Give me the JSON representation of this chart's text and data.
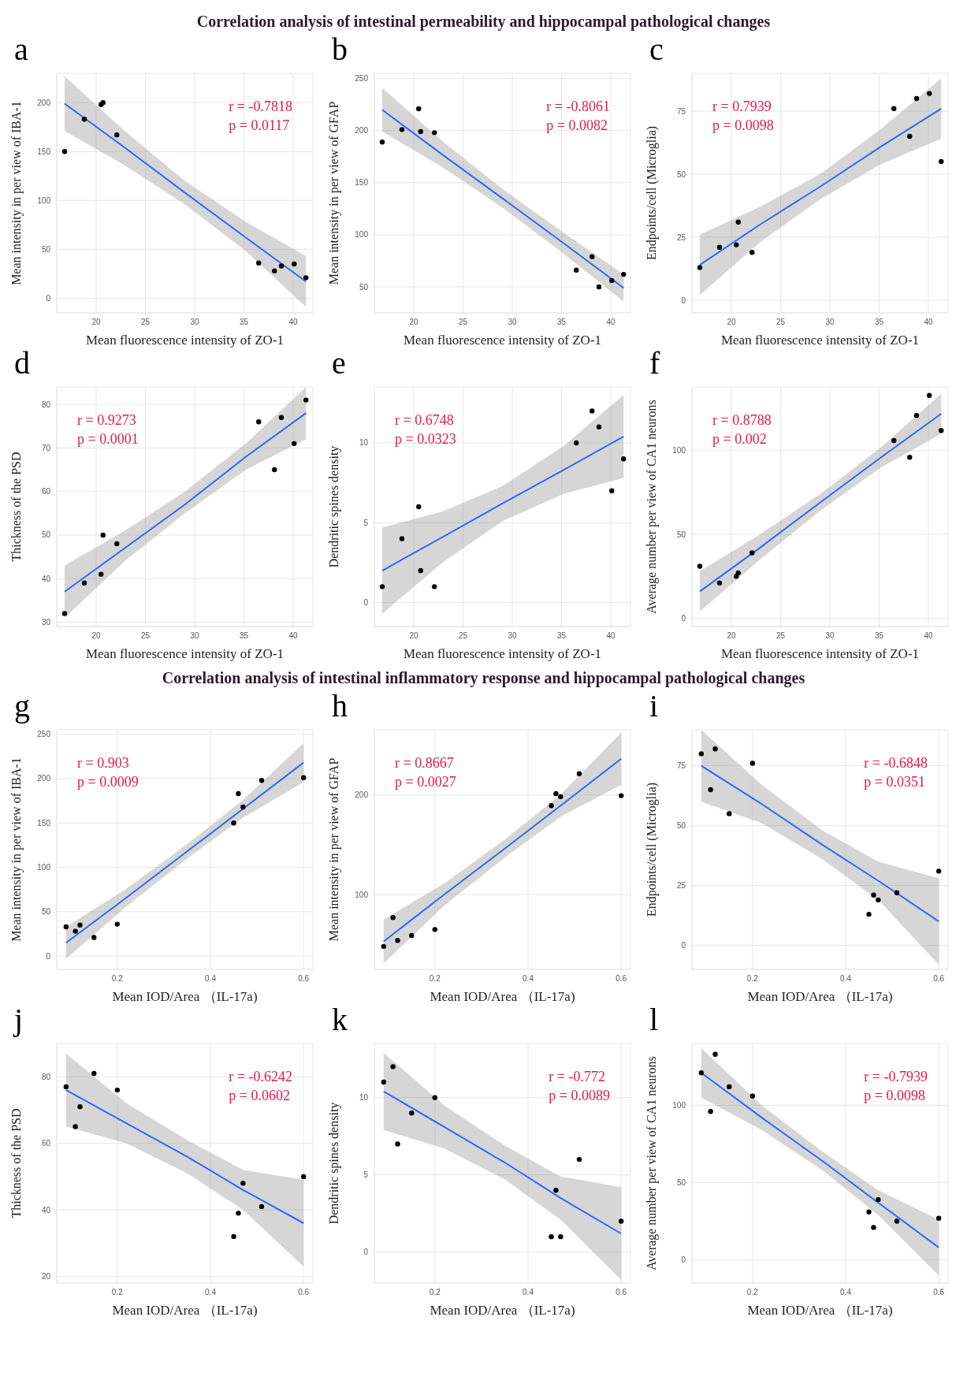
{
  "chart_data": [
    {
      "type": "scatter",
      "title": "Correlation analysis of intestinal permeability and hippocampal pathological changes",
      "annotations": [
        "a",
        "r = -0.7818",
        "p = 0.0117"
      ],
      "xlabel": "Mean fluorescence intensity of ZO-1",
      "ylabel": "Mean intensity in per view of IBA-1",
      "xlim": [
        16,
        42
      ],
      "xticks": [
        20,
        25,
        30,
        35,
        40
      ],
      "ylim": [
        -15,
        230
      ],
      "yticks": [
        0,
        50,
        100,
        150,
        200
      ],
      "grid": true,
      "series": [
        {
          "color": "#000000",
          "marker": "circle",
          "x": [
            16.8,
            18.8,
            20.5,
            20.7,
            22.1,
            36.5,
            38.1,
            38.8,
            40.1,
            41.3
          ],
          "values": [
            150,
            183,
            198,
            200,
            167,
            36,
            28,
            33,
            35,
            21
          ]
        },
        {
          "type": "line",
          "color": "#3366ff",
          "x": [
            16.8,
            22.9,
            29,
            35.2,
            41.3
          ],
          "values": [
            199,
            154,
            108,
            62,
            17
          ],
          "lower": [
            171,
            136,
            96,
            48,
            -9
          ],
          "upper": [
            227,
            171,
            120,
            78,
            43
          ]
        }
      ]
    },
    {
      "type": "scatter",
      "annotations": [
        "b",
        "r = -0.8061",
        "p = 0.0082"
      ],
      "xlabel": "Mean fluorescence intensity of ZO-1",
      "ylabel": "Mean intensity in per view of GFAP",
      "xlim": [
        16,
        42
      ],
      "xticks": [
        20,
        25,
        30,
        35,
        40
      ],
      "ylim": [
        25,
        255
      ],
      "yticks": [
        50,
        100,
        150,
        200,
        250
      ],
      "grid": true,
      "series": [
        {
          "color": "#000000",
          "marker": "circle",
          "x": [
            16.8,
            18.8,
            20.5,
            20.7,
            22.1,
            36.5,
            38.1,
            38.8,
            40.1,
            41.3
          ],
          "values": [
            189,
            201,
            221,
            199,
            198,
            66,
            79,
            50,
            56,
            62
          ]
        },
        {
          "type": "line",
          "color": "#3366ff",
          "x": [
            16.8,
            22.9,
            29,
            35.2,
            41.3
          ],
          "values": [
            220,
            177,
            135,
            92,
            49
          ],
          "lower": [
            199,
            165,
            126,
            82,
            36
          ],
          "upper": [
            241,
            190,
            144,
            102,
            62
          ]
        }
      ]
    },
    {
      "type": "scatter",
      "annotations": [
        "c",
        "r = 0.7939",
        "p = 0.0098"
      ],
      "xlabel": "Mean fluorescence intensity of ZO-1",
      "ylabel": "Endpoints/cell (Microglia)",
      "xlim": [
        16,
        42
      ],
      "xticks": [
        20,
        25,
        30,
        35,
        40
      ],
      "ylim": [
        -5,
        90
      ],
      "yticks": [
        0,
        25,
        50,
        75
      ],
      "grid": true,
      "series": [
        {
          "color": "#000000",
          "marker": "circle",
          "x": [
            16.8,
            18.8,
            20.5,
            20.7,
            22.1,
            36.5,
            38.1,
            38.8,
            40.1,
            41.3
          ],
          "values": [
            13,
            21,
            22,
            31,
            19,
            76,
            65,
            80,
            82,
            55
          ]
        },
        {
          "type": "line",
          "color": "#3366ff",
          "x": [
            16.8,
            22.9,
            29,
            35.2,
            41.3
          ],
          "values": [
            14,
            30,
            45,
            61,
            76
          ],
          "lower": [
            2,
            23,
            40,
            54,
            64
          ],
          "upper": [
            26,
            37,
            50,
            68,
            88
          ]
        }
      ]
    },
    {
      "type": "scatter",
      "annotations": [
        "d",
        "r = 0.9273",
        "p = 0.0001"
      ],
      "xlabel": "Mean fluorescence intensity of ZO-1",
      "ylabel": "Thickness of the PSD",
      "xlim": [
        16,
        42
      ],
      "xticks": [
        20,
        25,
        30,
        35,
        40
      ],
      "ylim": [
        29,
        84
      ],
      "yticks": [
        30,
        40,
        50,
        60,
        70,
        80
      ],
      "grid": true,
      "series": [
        {
          "color": "#000000",
          "marker": "circle",
          "x": [
            16.8,
            18.8,
            20.5,
            20.7,
            22.1,
            36.5,
            38.1,
            38.8,
            40.1,
            41.3
          ],
          "values": [
            32,
            39,
            41,
            50,
            48,
            76,
            65,
            77,
            71,
            81
          ]
        },
        {
          "type": "line",
          "color": "#3366ff",
          "x": [
            16.8,
            22.9,
            29,
            35.2,
            41.3
          ],
          "values": [
            37,
            47,
            57,
            68,
            78
          ],
          "lower": [
            31,
            44,
            55,
            65,
            72
          ],
          "upper": [
            43,
            51,
            60,
            71,
            84
          ]
        }
      ]
    },
    {
      "type": "scatter",
      "annotations": [
        "e",
        "r = 0.6748",
        "p = 0.0323"
      ],
      "xlabel": "Mean fluorescence intensity of ZO-1",
      "ylabel": "Dendritic spines density",
      "xlim": [
        16,
        42
      ],
      "xticks": [
        20,
        25,
        30,
        35,
        40
      ],
      "ylim": [
        -1.5,
        13.5
      ],
      "yticks": [
        0,
        5,
        10
      ],
      "grid": true,
      "series": [
        {
          "color": "#000000",
          "marker": "circle",
          "x": [
            16.8,
            18.8,
            20.5,
            20.7,
            22.1,
            36.5,
            38.1,
            38.8,
            40.1,
            41.3
          ],
          "values": [
            1,
            4,
            6,
            2,
            1,
            10,
            12,
            11,
            7,
            9
          ]
        },
        {
          "type": "line",
          "color": "#3366ff",
          "x": [
            16.8,
            22.9,
            29,
            35.2,
            41.3
          ],
          "values": [
            2,
            4.1,
            6.2,
            8.3,
            10.4
          ],
          "lower": [
            -0.7,
            2.5,
            5.1,
            6.8,
            7.8
          ],
          "upper": [
            4.7,
            5.7,
            7.3,
            9.8,
            13
          ]
        }
      ]
    },
    {
      "type": "scatter",
      "annotations": [
        "f",
        "r = 0.8788",
        "p = 0.002"
      ],
      "xlabel": "Mean fluorescence intensity of ZO-1",
      "ylabel": "Average number per view of CA1 neurons",
      "xlim": [
        16,
        42
      ],
      "xticks": [
        20,
        25,
        30,
        35,
        40
      ],
      "ylim": [
        -5,
        138
      ],
      "yticks": [
        0,
        50,
        100
      ],
      "grid": true,
      "series": [
        {
          "color": "#000000",
          "marker": "circle",
          "x": [
            16.8,
            18.8,
            20.5,
            20.7,
            22.1,
            36.5,
            38.1,
            38.8,
            40.1,
            41.3
          ],
          "values": [
            31,
            21,
            25,
            27,
            39,
            106,
            96,
            121,
            133,
            112
          ]
        },
        {
          "type": "line",
          "color": "#3366ff",
          "x": [
            16.8,
            22.9,
            29,
            35.2,
            41.3
          ],
          "values": [
            16,
            42,
            69,
            96,
            122
          ],
          "lower": [
            4,
            35,
            64,
            90,
            110
          ],
          "upper": [
            28,
            50,
            74,
            102,
            134
          ]
        }
      ]
    },
    {
      "type": "scatter",
      "title": "Correlation analysis of intestinal inflammatory response  and hippocampal pathological changes",
      "annotations": [
        "g",
        "r = 0.903",
        "p = 0.0009"
      ],
      "xlabel": "Mean IOD/Area （IL-17a)",
      "ylabel": "Mean intensity in per view of IBA-1",
      "xlim": [
        0.07,
        0.62
      ],
      "xticks": [
        0.2,
        0.4,
        0.6
      ],
      "ylim": [
        -15,
        255
      ],
      "yticks": [
        0,
        50,
        100,
        150,
        200,
        250
      ],
      "grid": true,
      "series": [
        {
          "color": "#000000",
          "marker": "circle",
          "x": [
            0.09,
            0.11,
            0.12,
            0.15,
            0.2,
            0.45,
            0.46,
            0.47,
            0.51,
            0.6
          ],
          "values": [
            33,
            28,
            35,
            21,
            36,
            150,
            183,
            168,
            198,
            201
          ]
        },
        {
          "type": "line",
          "color": "#3366ff",
          "x": [
            0.09,
            0.22,
            0.35,
            0.47,
            0.6
          ],
          "values": [
            15,
            66,
            118,
            166,
            218
          ],
          "lower": [
            -3,
            56,
            110,
            156,
            196
          ],
          "upper": [
            33,
            76,
            126,
            176,
            240
          ]
        }
      ]
    },
    {
      "type": "scatter",
      "annotations": [
        "h",
        "r = 0.8667",
        "p = 0.0027"
      ],
      "xlabel": "Mean IOD/Area （IL-17a)",
      "ylabel": "Mean intensity in per view of GFAP",
      "xlim": [
        0.07,
        0.62
      ],
      "xticks": [
        0.2,
        0.4,
        0.6
      ],
      "ylim": [
        25,
        265
      ],
      "yticks": [
        100,
        200
      ],
      "grid": true,
      "series": [
        {
          "color": "#000000",
          "marker": "circle",
          "x": [
            0.09,
            0.11,
            0.12,
            0.15,
            0.2,
            0.45,
            0.46,
            0.47,
            0.51,
            0.6
          ],
          "values": [
            48,
            77,
            54,
            59,
            65,
            189,
            201,
            198,
            221,
            199
          ]
        },
        {
          "type": "line",
          "color": "#3366ff",
          "x": [
            0.09,
            0.22,
            0.35,
            0.47,
            0.6
          ],
          "values": [
            53,
            100,
            146,
            189,
            236
          ],
          "lower": [
            31,
            89,
            137,
            178,
            210
          ],
          "upper": [
            75,
            111,
            155,
            200,
            262
          ]
        }
      ]
    },
    {
      "type": "scatter",
      "annotations": [
        "i",
        "r = -0.6848",
        "p = 0.0351"
      ],
      "xlabel": "Mean IOD/Area （IL-17a)",
      "ylabel": "Endpoints/cell (Microglia)",
      "xlim": [
        0.07,
        0.62
      ],
      "xticks": [
        0.2,
        0.4,
        0.6
      ],
      "ylim": [
        -10,
        90
      ],
      "yticks": [
        0,
        25,
        50,
        75
      ],
      "grid": true,
      "series": [
        {
          "color": "#000000",
          "marker": "circle",
          "x": [
            0.09,
            0.11,
            0.12,
            0.15,
            0.2,
            0.45,
            0.46,
            0.47,
            0.51,
            0.6
          ],
          "values": [
            80,
            65,
            82,
            55,
            76,
            13,
            21,
            19,
            22,
            31
          ]
        },
        {
          "type": "line",
          "color": "#3366ff",
          "x": [
            0.09,
            0.22,
            0.35,
            0.47,
            0.6
          ],
          "values": [
            75,
            59,
            42,
            27,
            10
          ],
          "lower": [
            60,
            51,
            36,
            19,
            -8
          ],
          "upper": [
            90,
            67,
            48,
            35,
            28
          ]
        }
      ]
    },
    {
      "type": "scatter",
      "annotations": [
        "j",
        "r = -0.6242",
        "p = 0.0602"
      ],
      "xlabel": "Mean IOD/Area （IL-17a)",
      "ylabel": "Thickness of the PSD",
      "xlim": [
        0.07,
        0.62
      ],
      "xticks": [
        0.2,
        0.4,
        0.6
      ],
      "ylim": [
        18,
        90
      ],
      "yticks": [
        20,
        40,
        60,
        80
      ],
      "grid": true,
      "series": [
        {
          "color": "#000000",
          "marker": "circle",
          "x": [
            0.09,
            0.11,
            0.12,
            0.15,
            0.2,
            0.45,
            0.46,
            0.47,
            0.51,
            0.6
          ],
          "values": [
            77,
            65,
            71,
            81,
            76,
            32,
            39,
            48,
            41,
            50
          ]
        },
        {
          "type": "line",
          "color": "#3366ff",
          "x": [
            0.09,
            0.22,
            0.35,
            0.47,
            0.6
          ],
          "values": [
            76,
            66,
            56,
            46,
            36
          ],
          "lower": [
            65,
            60,
            51,
            40,
            23
          ],
          "upper": [
            87,
            72,
            61,
            52,
            49
          ]
        }
      ]
    },
    {
      "type": "scatter",
      "annotations": [
        "k",
        "r = -0.772",
        "p = 0.0089"
      ],
      "xlabel": "Mean IOD/Area （IL-17a)",
      "ylabel": "Dendritic spines density",
      "xlim": [
        0.07,
        0.62
      ],
      "xticks": [
        0.2,
        0.4,
        0.6
      ],
      "ylim": [
        -2,
        13.5
      ],
      "yticks": [
        0,
        5,
        10
      ],
      "grid": true,
      "series": [
        {
          "color": "#000000",
          "marker": "circle",
          "x": [
            0.09,
            0.11,
            0.12,
            0.15,
            0.2,
            0.45,
            0.46,
            0.47,
            0.51,
            0.6
          ],
          "values": [
            11,
            12,
            7,
            9,
            10,
            1,
            4,
            1,
            6,
            2
          ]
        },
        {
          "type": "line",
          "color": "#3366ff",
          "x": [
            0.09,
            0.22,
            0.35,
            0.47,
            0.6
          ],
          "values": [
            10.4,
            8.1,
            5.8,
            3.5,
            1.2
          ],
          "lower": [
            7.9,
            6.7,
            4.7,
            2.1,
            -1.8
          ],
          "upper": [
            12.9,
            9.5,
            6.9,
            4.9,
            4.2
          ]
        }
      ]
    },
    {
      "type": "scatter",
      "annotations": [
        "l",
        "r = -0.7939",
        "p = 0.0098"
      ],
      "xlabel": "Mean IOD/Area （IL-17a)",
      "ylabel": "Average number per view of CA1 neurons",
      "xlim": [
        0.07,
        0.62
      ],
      "xticks": [
        0.2,
        0.4,
        0.6
      ],
      "ylim": [
        -15,
        140
      ],
      "yticks": [
        0,
        50,
        100
      ],
      "grid": true,
      "series": [
        {
          "color": "#000000",
          "marker": "circle",
          "x": [
            0.09,
            0.11,
            0.12,
            0.15,
            0.2,
            0.45,
            0.46,
            0.47,
            0.51,
            0.6
          ],
          "values": [
            121,
            96,
            133,
            112,
            106,
            31,
            21,
            39,
            25,
            27
          ]
        },
        {
          "type": "line",
          "color": "#3366ff",
          "x": [
            0.09,
            0.22,
            0.35,
            0.47,
            0.6
          ],
          "values": [
            121,
            92,
            64,
            37,
            8
          ],
          "lower": [
            105,
            84,
            58,
            29,
            -10
          ],
          "upper": [
            137,
            100,
            70,
            45,
            26
          ]
        }
      ]
    }
  ]
}
